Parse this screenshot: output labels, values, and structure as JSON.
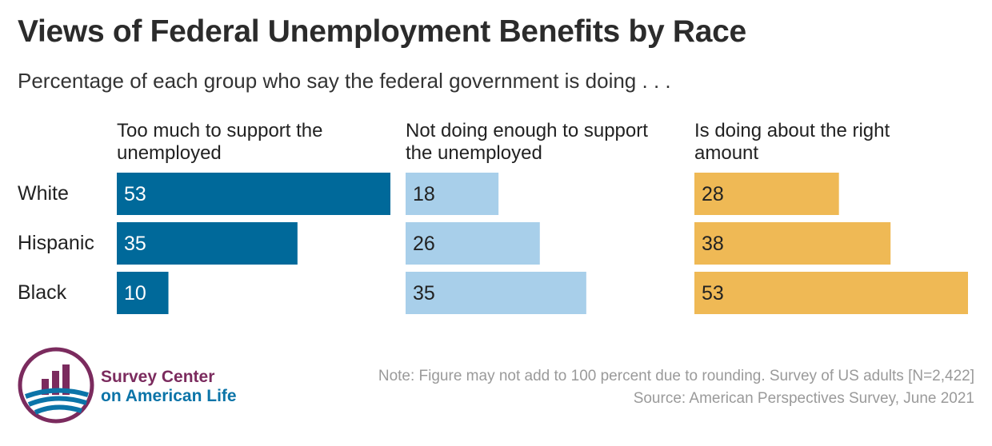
{
  "chart_data": {
    "type": "bar",
    "title": "Views of Federal Unemployment Benefits by Race",
    "subtitle": "Percentage of each group who say the federal government is doing . . .",
    "categories": [
      "White",
      "Hispanic",
      "Black"
    ],
    "series": [
      {
        "name": "Too much to support the unemployed",
        "values": [
          53,
          35,
          10
        ],
        "color": "#00699a",
        "label_color": "#ffffff"
      },
      {
        "name": "Not doing enough to support the unemployed",
        "values": [
          18,
          26,
          35
        ],
        "color": "#a8cfea",
        "label_color": "#222222"
      },
      {
        "name": "Is doing about the right amount",
        "values": [
          28,
          38,
          53
        ],
        "color": "#efb955",
        "label_color": "#222222"
      }
    ],
    "xlim": [
      0,
      53
    ]
  },
  "notes": {
    "note": "Note: Figure may not add to 100 percent due to rounding. Survey of US adults [N=2,422]",
    "source": "Source: American Perspectives Survey, June 2021"
  },
  "logo": {
    "line1": "Survey Center",
    "line2": "on American Life",
    "icon": "bar-chart-circle-icon",
    "colors": {
      "maroon": "#7b2b5e",
      "blue": "#0b74a8"
    }
  }
}
